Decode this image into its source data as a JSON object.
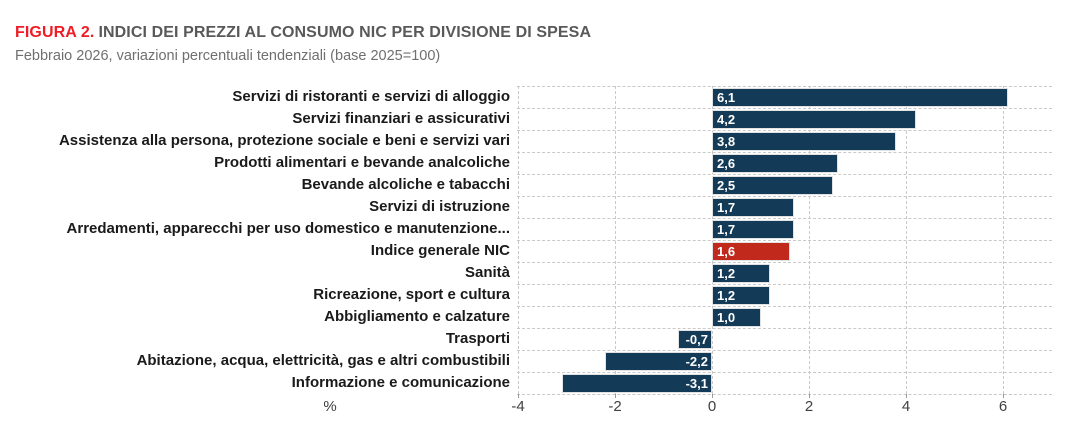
{
  "header": {
    "figure_label": "FIGURA 2.",
    "title": "INDICI DEI PREZZI AL CONSUMO NIC PER DIVISIONE DI SPESA",
    "subtitle": "Febbraio 2026, variazioni percentuali tendenziali (base 2025=100)"
  },
  "chart_data": {
    "type": "bar",
    "orientation": "horizontal",
    "categories": [
      "Servizi di ristoranti e servizi di alloggio",
      "Servizi finanziari e assicurativi",
      "Assistenza alla persona, protezione sociale e beni e servizi vari",
      "Prodotti alimentari e bevande analcoliche",
      "Bevande alcoliche e tabacchi",
      "Servizi di istruzione",
      "Arredamenti, apparecchi per uso domestico e manutenzione...",
      "Indice generale NIC",
      "Sanità",
      "Ricreazione, sport e cultura",
      "Abbigliamento e calzature",
      "Trasporti",
      "Abitazione, acqua, elettricità, gas e altri combustibili",
      "Informazione e comunicazione"
    ],
    "values": [
      6.1,
      4.2,
      3.8,
      2.6,
      2.5,
      1.7,
      1.7,
      1.6,
      1.2,
      1.2,
      1.0,
      -0.7,
      -2.2,
      -3.1
    ],
    "value_labels": [
      "6,1",
      "4,2",
      "3,8",
      "2,6",
      "2,5",
      "1,7",
      "1,7",
      "1,6",
      "1,2",
      "1,2",
      "1,0",
      "-0,7",
      "-2,2",
      "-3,1"
    ],
    "highlight_index": 7,
    "highlight_category": "Indice generale NIC",
    "xlabel": "%",
    "x_ticks": [
      -4,
      -2,
      0,
      2,
      4,
      6
    ],
    "x_tick_labels": [
      "-4",
      "-2",
      "0",
      "2",
      "4",
      "6"
    ],
    "xlim": [
      -4,
      7
    ],
    "grid": "dashed",
    "legend": "none",
    "colors": {
      "bar": "#133a57",
      "highlight": "#c2291d",
      "figure_label": "#ee1c25",
      "title_text": "#595959",
      "subtitle_text": "#6f6f6f",
      "gridline": "#c9c9c9"
    }
  }
}
